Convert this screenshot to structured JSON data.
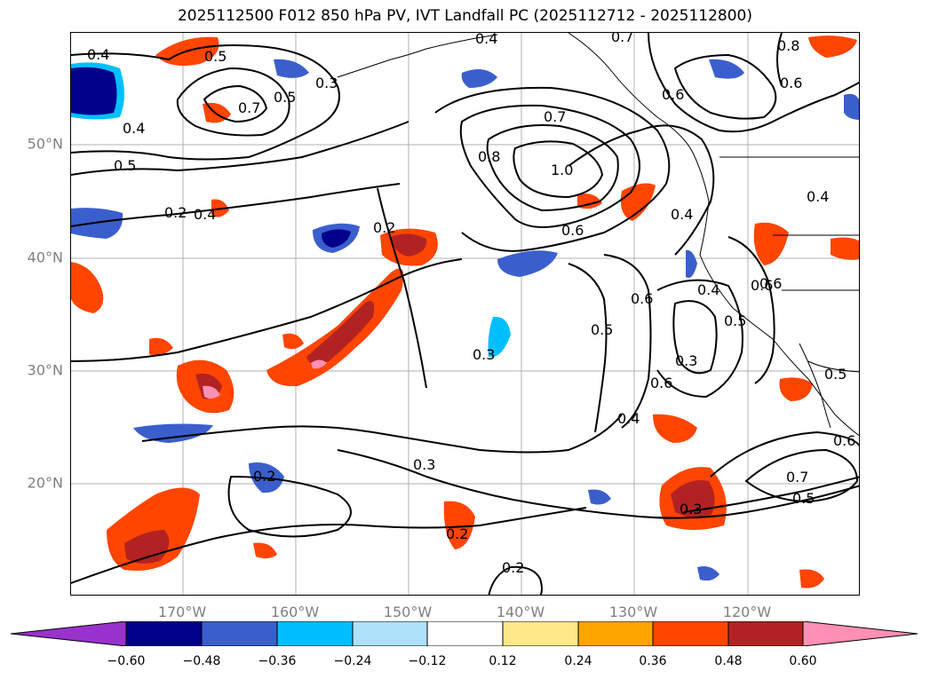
{
  "title": "2025112500 F012 850 hPa PV, IVT Landfall PC (2025112712 - 2025112800)",
  "axes": {
    "lat_ticks": [
      "50°N",
      "40°N",
      "30°N",
      "20°N"
    ],
    "lon_ticks": [
      "170°W",
      "160°W",
      "150°W",
      "140°W",
      "130°W",
      "120°W"
    ]
  },
  "colorbar": {
    "tick_labels": [
      "−0.60",
      "−0.48",
      "−0.36",
      "−0.24",
      "−0.12",
      "0.12",
      "0.24",
      "0.36",
      "0.48",
      "0.60"
    ],
    "colors": [
      "#9932cc",
      "#00008b",
      "#3a5fcd",
      "#00bfff",
      "#afe1f8",
      "#ffffff",
      "#ffe88a",
      "#ffa500",
      "#ff4500",
      "#b22222",
      "#ff8fb4"
    ]
  },
  "contour_labels": [
    "0.4",
    "0.5",
    "0.7",
    "0.5",
    "0.4",
    "0.5",
    "0.2",
    "0.2",
    "0.4",
    "0.7",
    "0.8",
    "1.0",
    "0.6",
    "0.4",
    "0.7",
    "0.8",
    "0.6",
    "0.6",
    "0.4",
    "0.6",
    "0.4",
    "0.5",
    "0.3",
    "0.6",
    "0.5",
    "0.6",
    "0.3",
    "0.4",
    "0.6",
    "0.3",
    "0.3",
    "0.2",
    "0.2",
    "0.2",
    "0.3",
    "0.7",
    "0.5",
    "0.6",
    "0.5",
    "0.4"
  ]
}
